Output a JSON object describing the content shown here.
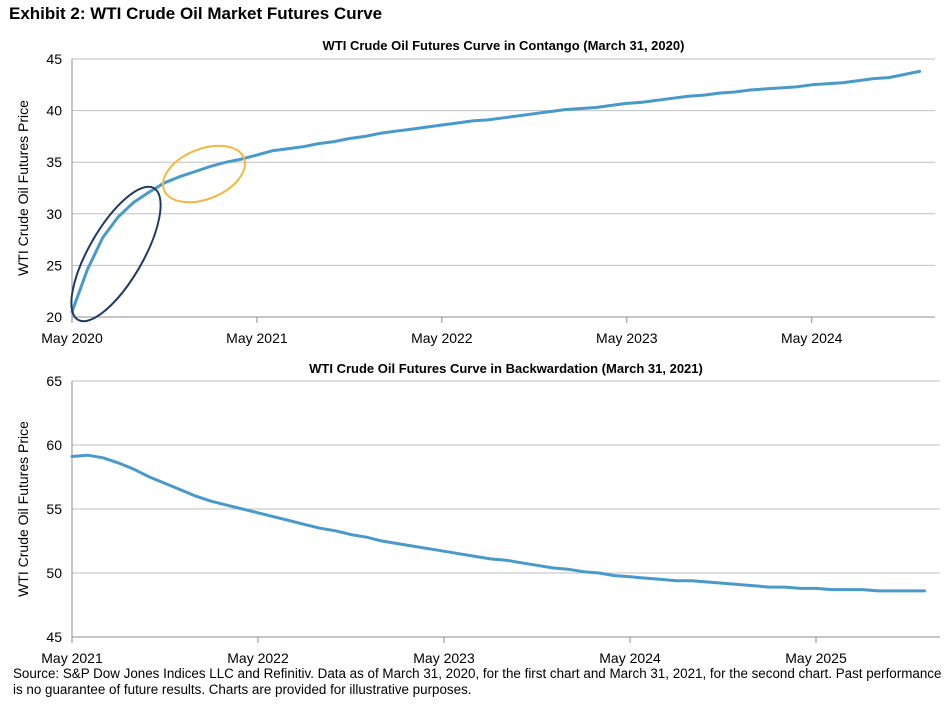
{
  "exhibit_title": "Exhibit 2: WTI Crude Oil Market Futures Curve",
  "footnote": "Source: S&P Dow Jones Indices LLC and Refinitiv. Data as of March 31, 2020, for the first chart and March 31, 2021, for the second chart. Past performance is no guarantee of future results. Charts are provided for illustrative purposes.",
  "chart_data": [
    {
      "type": "line",
      "title": "WTI Crude Oil Futures Curve in Contango (March 31, 2020)",
      "xlabel": "",
      "ylabel": "WTI Crude Oil Futures Price",
      "ylim": [
        20,
        45
      ],
      "yticks": [
        20,
        25,
        30,
        35,
        40,
        45
      ],
      "xlim": [
        "2020-05",
        "2025-01"
      ],
      "xticks": [
        "2020-05",
        "2021-05",
        "2022-05",
        "2023-05",
        "2024-05"
      ],
      "xtick_labels": [
        "May 2020",
        "May 2021",
        "May 2022",
        "May 2023",
        "May 2024"
      ],
      "grid": true,
      "series": [
        {
          "color": "#4a9ac9",
          "x": [
            "2020-05",
            "2020-06",
            "2020-07",
            "2020-08",
            "2020-09",
            "2020-10",
            "2020-11",
            "2020-12",
            "2021-01",
            "2021-02",
            "2021-03",
            "2021-04",
            "2021-05",
            "2021-06",
            "2021-07",
            "2021-08",
            "2021-09",
            "2021-10",
            "2021-11",
            "2021-12",
            "2022-01",
            "2022-02",
            "2022-03",
            "2022-04",
            "2022-05",
            "2022-06",
            "2022-07",
            "2022-08",
            "2022-09",
            "2022-10",
            "2022-11",
            "2022-12",
            "2023-01",
            "2023-02",
            "2023-03",
            "2023-04",
            "2023-05",
            "2023-06",
            "2023-07",
            "2023-08",
            "2023-09",
            "2023-10",
            "2023-11",
            "2023-12",
            "2024-01",
            "2024-02",
            "2024-03",
            "2024-04",
            "2024-05",
            "2024-06",
            "2024-07",
            "2024-08",
            "2024-09",
            "2024-10",
            "2024-11",
            "2024-12"
          ],
          "values": [
            20.5,
            24.6,
            27.7,
            29.7,
            31.1,
            32.1,
            33.0,
            33.6,
            34.1,
            34.6,
            35.0,
            35.3,
            35.7,
            36.1,
            36.3,
            36.5,
            36.8,
            37.0,
            37.3,
            37.5,
            37.8,
            38.0,
            38.2,
            38.4,
            38.6,
            38.8,
            39.0,
            39.1,
            39.3,
            39.5,
            39.7,
            39.9,
            40.1,
            40.2,
            40.3,
            40.5,
            40.7,
            40.8,
            41.0,
            41.2,
            41.4,
            41.5,
            41.7,
            41.8,
            42.0,
            42.1,
            42.2,
            42.3,
            42.5,
            42.6,
            42.7,
            42.9,
            43.1,
            43.2,
            43.5,
            43.8
          ]
        }
      ],
      "annotations": [
        {
          "shape": "ellipse",
          "color": "#1f3864",
          "note": "front months"
        },
        {
          "shape": "ellipse",
          "color": "#f4b63f",
          "note": "later months"
        }
      ]
    },
    {
      "type": "line",
      "title": "WTI Crude Oil Futures Curve in Backwardation (March 31, 2021)",
      "xlabel": "",
      "ylabel": "WTI Crude Oil Futures Price",
      "ylim": [
        45,
        65
      ],
      "yticks": [
        45,
        50,
        55,
        60,
        65
      ],
      "xlim": [
        "2021-05",
        "2026-01"
      ],
      "xticks": [
        "2021-05",
        "2022-05",
        "2023-05",
        "2024-05",
        "2025-05"
      ],
      "xtick_labels": [
        "May 2021",
        "May 2022",
        "May 2023",
        "May 2024",
        "May 2025"
      ],
      "grid": true,
      "series": [
        {
          "color": "#4a9ac9",
          "x": [
            "2021-05",
            "2021-06",
            "2021-07",
            "2021-08",
            "2021-09",
            "2021-10",
            "2021-11",
            "2021-12",
            "2022-01",
            "2022-02",
            "2022-03",
            "2022-04",
            "2022-05",
            "2022-06",
            "2022-07",
            "2022-08",
            "2022-09",
            "2022-10",
            "2022-11",
            "2022-12",
            "2023-01",
            "2023-02",
            "2023-03",
            "2023-04",
            "2023-05",
            "2023-06",
            "2023-07",
            "2023-08",
            "2023-09",
            "2023-10",
            "2023-11",
            "2023-12",
            "2024-01",
            "2024-02",
            "2024-03",
            "2024-04",
            "2024-05",
            "2024-06",
            "2024-07",
            "2024-08",
            "2024-09",
            "2024-10",
            "2024-11",
            "2024-12",
            "2025-01",
            "2025-02",
            "2025-03",
            "2025-04",
            "2025-05",
            "2025-06",
            "2025-07",
            "2025-08",
            "2025-09",
            "2025-10",
            "2025-11",
            "2025-12"
          ],
          "values": [
            59.1,
            59.2,
            59.0,
            58.6,
            58.1,
            57.5,
            57.0,
            56.5,
            56.0,
            55.6,
            55.3,
            55.0,
            54.7,
            54.4,
            54.1,
            53.8,
            53.5,
            53.3,
            53.0,
            52.8,
            52.5,
            52.3,
            52.1,
            51.9,
            51.7,
            51.5,
            51.3,
            51.1,
            51.0,
            50.8,
            50.6,
            50.4,
            50.3,
            50.1,
            50.0,
            49.8,
            49.7,
            49.6,
            49.5,
            49.4,
            49.4,
            49.3,
            49.2,
            49.1,
            49.0,
            48.9,
            48.9,
            48.8,
            48.8,
            48.7,
            48.7,
            48.7,
            48.6,
            48.6,
            48.6,
            48.6
          ]
        }
      ]
    }
  ]
}
